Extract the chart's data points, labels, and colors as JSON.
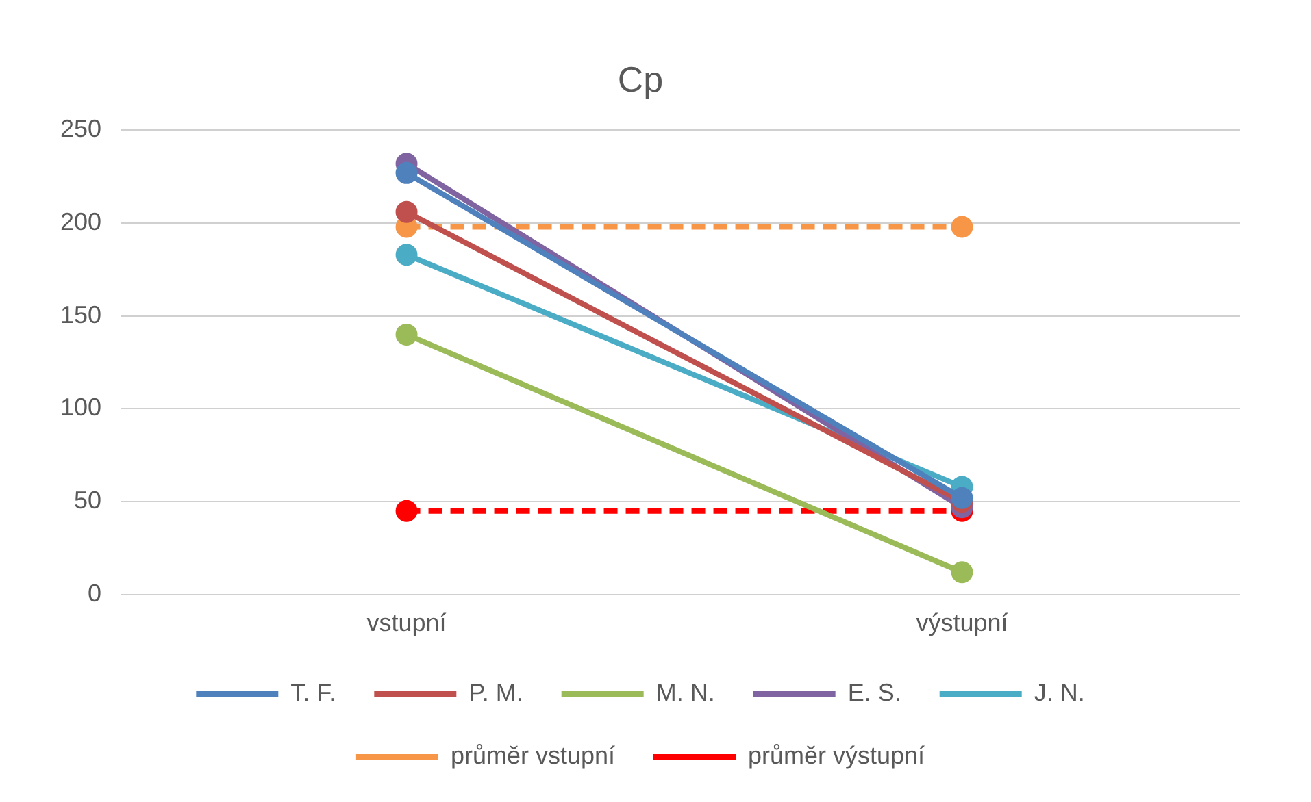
{
  "chart_data": {
    "type": "line",
    "title": "Cp",
    "categories": [
      "vstupní",
      "výstupní"
    ],
    "series": [
      {
        "name": "T. F.",
        "color": "#4f81bd",
        "values": [
          227,
          52
        ]
      },
      {
        "name": "P. M.",
        "color": "#c0504d",
        "values": [
          206,
          50
        ]
      },
      {
        "name": "M. N.",
        "color": "#9bbb59",
        "values": [
          140,
          12
        ]
      },
      {
        "name": "E. S.",
        "color": "#8064a2",
        "values": [
          232,
          47
        ]
      },
      {
        "name": "J. N.",
        "color": "#4bacc6",
        "values": [
          183,
          58
        ]
      },
      {
        "name": "průměr vstupní",
        "color": "#f79646",
        "values": [
          198,
          198
        ],
        "line_style": "dashed"
      },
      {
        "name": "průměr výstupní",
        "color": "#ff0000",
        "values": [
          45,
          45
        ],
        "line_style": "dashed"
      }
    ],
    "ylim": [
      0,
      250
    ],
    "yticks": [
      0,
      50,
      100,
      150,
      200,
      250
    ],
    "grid": "y",
    "legend": "bottom",
    "marker": "circle",
    "line_style": "solid"
  }
}
